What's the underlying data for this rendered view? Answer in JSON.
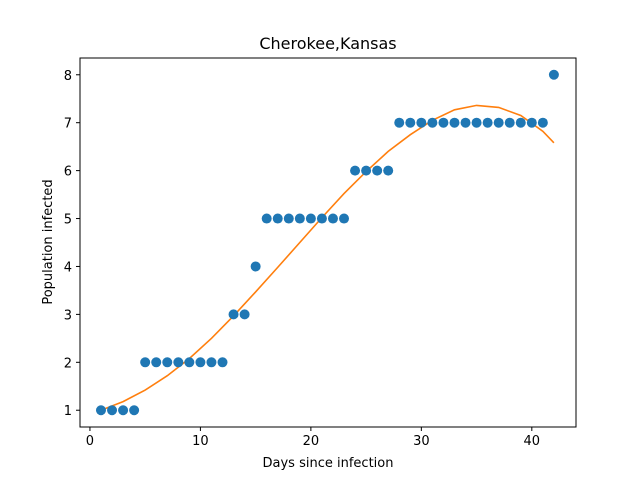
{
  "chart_data": {
    "type": "scatter",
    "title": "Cherokee,Kansas",
    "xlabel": "Days since infection",
    "ylabel": "Population infected",
    "xlim": [
      -0.9,
      44.0
    ],
    "ylim": [
      0.65,
      8.35
    ],
    "xticks": [
      0,
      10,
      20,
      30,
      40
    ],
    "yticks": [
      1,
      2,
      3,
      4,
      5,
      6,
      7,
      8
    ],
    "grid": false,
    "colors": {
      "points": "#1f77b4",
      "fit": "#ff7f0e"
    },
    "series": [
      {
        "type": "scatter",
        "x": [
          1,
          2,
          3,
          4,
          5,
          6,
          7,
          8,
          9,
          10,
          11,
          12,
          13,
          14,
          15,
          16,
          17,
          18,
          19,
          20,
          21,
          22,
          23,
          24,
          25,
          26,
          27,
          28,
          29,
          30,
          31,
          32,
          33,
          34,
          35,
          36,
          37,
          38,
          39,
          40,
          41,
          42
        ],
        "y": [
          1,
          1,
          1,
          1,
          2,
          2,
          2,
          2,
          2,
          2,
          2,
          2,
          3,
          3,
          4,
          5,
          5,
          5,
          5,
          5,
          5,
          5,
          5,
          6,
          6,
          6,
          6,
          7,
          7,
          7,
          7,
          7,
          7,
          7,
          7,
          7,
          7,
          7,
          7,
          7,
          7,
          8
        ]
      },
      {
        "type": "line",
        "x": [
          1,
          3,
          5,
          7,
          9,
          11,
          13,
          15,
          17,
          19,
          21,
          23,
          25,
          27,
          29,
          31,
          33,
          35,
          37,
          39,
          41,
          42
        ],
        "y": [
          1.0,
          1.18,
          1.42,
          1.72,
          2.08,
          2.5,
          2.97,
          3.47,
          3.98,
          4.5,
          5.02,
          5.52,
          5.98,
          6.4,
          6.75,
          7.05,
          7.27,
          7.36,
          7.32,
          7.15,
          6.82,
          6.58
        ]
      }
    ]
  }
}
